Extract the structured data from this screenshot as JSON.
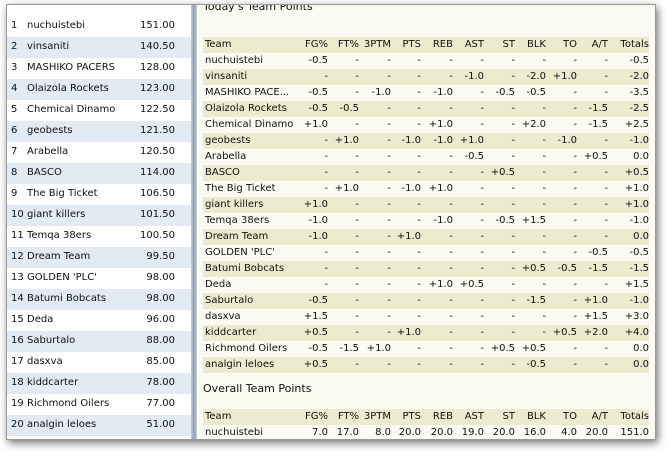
{
  "standings": [
    {
      "rank": "1",
      "team": "nuchuistebi",
      "points": "151.00"
    },
    {
      "rank": "2",
      "team": "vinsaniti",
      "points": "140.50"
    },
    {
      "rank": "3",
      "team": "MASHIKO PACERS",
      "points": "128.00"
    },
    {
      "rank": "4",
      "team": "Olaizola Rockets",
      "points": "123.00"
    },
    {
      "rank": "5",
      "team": "Chemical Dinamo",
      "points": "122.50"
    },
    {
      "rank": "6",
      "team": "geobests",
      "points": "121.50"
    },
    {
      "rank": "7",
      "team": "Arabella",
      "points": "120.50"
    },
    {
      "rank": "8",
      "team": "BASCO",
      "points": "114.00"
    },
    {
      "rank": "9",
      "team": "The Big Ticket",
      "points": "106.50"
    },
    {
      "rank": "10",
      "team": "giant killers",
      "points": "101.50"
    },
    {
      "rank": "11",
      "team": "Temqa 38ers",
      "points": "100.50"
    },
    {
      "rank": "12",
      "team": "Dream Team",
      "points": "99.50"
    },
    {
      "rank": "13",
      "team": "GOLDEN 'PLC'",
      "points": "98.00"
    },
    {
      "rank": "14",
      "team": "Batumi Bobcats",
      "points": "98.00"
    },
    {
      "rank": "15",
      "team": "Deda",
      "points": "96.00"
    },
    {
      "rank": "16",
      "team": "Saburtalo",
      "points": "88.00"
    },
    {
      "rank": "17",
      "team": "dasxva",
      "points": "85.00"
    },
    {
      "rank": "18",
      "team": "kiddcarter",
      "points": "78.00"
    },
    {
      "rank": "19",
      "team": "Richmond Oilers",
      "points": "77.00"
    },
    {
      "rank": "20",
      "team": "analgin leloes",
      "points": "51.00"
    }
  ],
  "today": {
    "title": "Today's Team Points",
    "columns": [
      "Team",
      "FG%",
      "FT%",
      "3PTM",
      "PTS",
      "REB",
      "AST",
      "ST",
      "BLK",
      "TO",
      "A/T",
      "Totals"
    ],
    "rows": [
      [
        "nuchuistebi",
        "-0.5",
        "-",
        "-",
        "-",
        "-",
        "-",
        "-",
        "-",
        "-",
        "-",
        "-0.5"
      ],
      [
        "vinsaniti",
        "-",
        "-",
        "-",
        "-",
        "-",
        "-1.0",
        "-",
        "-2.0",
        "+1.0",
        "-",
        "-2.0"
      ],
      [
        "MASHIKO PACE...",
        "-0.5",
        "-",
        "-1.0",
        "-",
        "-1.0",
        "-",
        "-0.5",
        "-0.5",
        "-",
        "-",
        "-3.5"
      ],
      [
        "Olaizola Rockets",
        "-0.5",
        "-0.5",
        "-",
        "-",
        "-",
        "-",
        "-",
        "-",
        "-",
        "-1.5",
        "-2.5"
      ],
      [
        "Chemical Dinamo",
        "+1.0",
        "-",
        "-",
        "-",
        "+1.0",
        "-",
        "-",
        "+2.0",
        "-",
        "-1.5",
        "+2.5"
      ],
      [
        "geobests",
        "-",
        "+1.0",
        "-",
        "-1.0",
        "-1.0",
        "+1.0",
        "-",
        "-",
        "-1.0",
        "-",
        "-1.0"
      ],
      [
        "Arabella",
        "-",
        "-",
        "-",
        "-",
        "-",
        "-0.5",
        "-",
        "-",
        "-",
        "+0.5",
        "0.0"
      ],
      [
        "BASCO",
        "-",
        "-",
        "-",
        "-",
        "-",
        "-",
        "+0.5",
        "-",
        "-",
        "-",
        "+0.5"
      ],
      [
        "The Big Ticket",
        "-",
        "+1.0",
        "-",
        "-1.0",
        "+1.0",
        "-",
        "-",
        "-",
        "-",
        "-",
        "+1.0"
      ],
      [
        "giant killers",
        "+1.0",
        "-",
        "-",
        "-",
        "-",
        "-",
        "-",
        "-",
        "-",
        "-",
        "+1.0"
      ],
      [
        "Temqa 38ers",
        "-1.0",
        "-",
        "-",
        "-",
        "-1.0",
        "-",
        "-0.5",
        "+1.5",
        "-",
        "-",
        "-1.0"
      ],
      [
        "Dream Team",
        "-1.0",
        "-",
        "-",
        "+1.0",
        "-",
        "-",
        "-",
        "-",
        "-",
        "-",
        "0.0"
      ],
      [
        "GOLDEN 'PLC'",
        "-",
        "-",
        "-",
        "-",
        "-",
        "-",
        "-",
        "-",
        "-",
        "-0.5",
        "-0.5"
      ],
      [
        "Batumi Bobcats",
        "-",
        "-",
        "-",
        "-",
        "-",
        "-",
        "-",
        "+0.5",
        "-0.5",
        "-1.5",
        "-1.5"
      ],
      [
        "Deda",
        "-",
        "-",
        "-",
        "-",
        "+1.0",
        "+0.5",
        "-",
        "-",
        "-",
        "-",
        "+1.5"
      ],
      [
        "Saburtalo",
        "-0.5",
        "-",
        "-",
        "-",
        "-",
        "-",
        "-",
        "-1.5",
        "-",
        "+1.0",
        "-1.0"
      ],
      [
        "dasxva",
        "+1.5",
        "-",
        "-",
        "-",
        "-",
        "-",
        "-",
        "-",
        "-",
        "+1.5",
        "+3.0"
      ],
      [
        "kiddcarter",
        "+0.5",
        "-",
        "-",
        "+1.0",
        "-",
        "-",
        "-",
        "-",
        "+0.5",
        "+2.0",
        "+4.0"
      ],
      [
        "Richmond Oilers",
        "-0.5",
        "-1.5",
        "+1.0",
        "-",
        "-",
        "-",
        "+0.5",
        "+0.5",
        "-",
        "-",
        "0.0"
      ],
      [
        "analgin leloes",
        "+0.5",
        "-",
        "-",
        "-",
        "-",
        "-",
        "-",
        "-0.5",
        "-",
        "-",
        "0.0"
      ]
    ]
  },
  "overall": {
    "title": "Overall Team Points",
    "columns": [
      "Team",
      "FG%",
      "FT%",
      "3PTM",
      "PTS",
      "REB",
      "AST",
      "ST",
      "BLK",
      "TO",
      "A/T",
      "Totals"
    ],
    "rows": [
      [
        "nuchuistebi",
        "7.0",
        "17.0",
        "8.0",
        "20.0",
        "20.0",
        "19.0",
        "20.0",
        "16.0",
        "4.0",
        "20.0",
        "151.0"
      ]
    ]
  }
}
